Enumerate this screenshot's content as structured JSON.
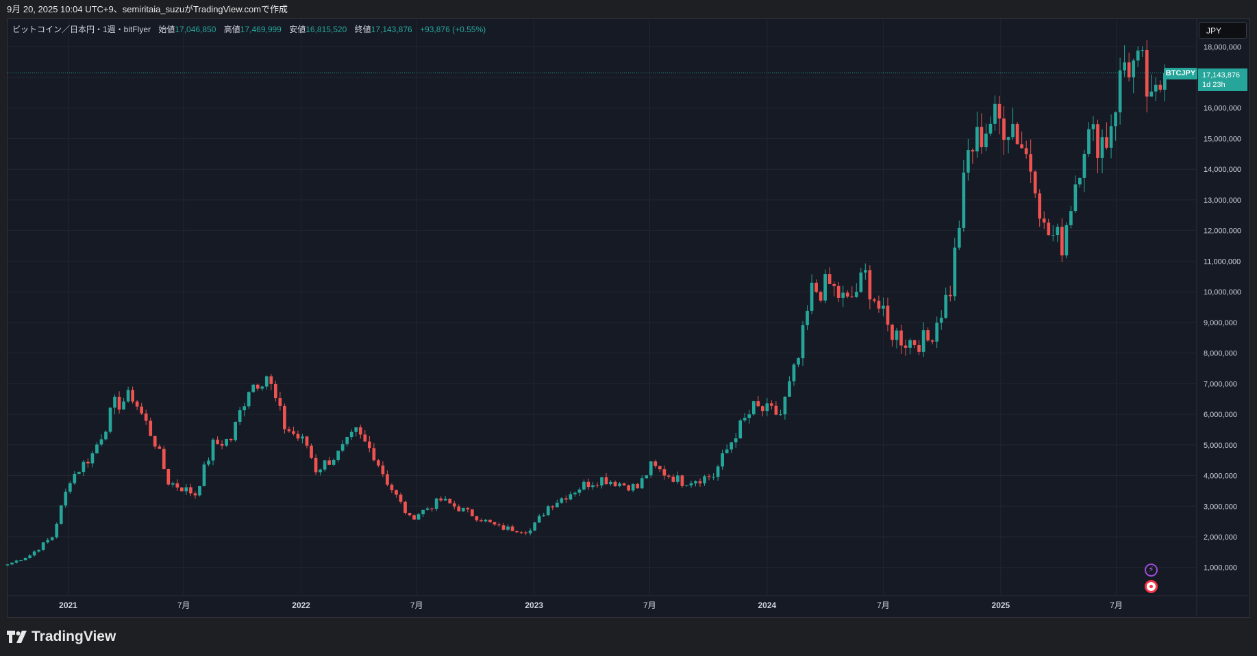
{
  "header": {
    "caption": "9月 20, 2025 10:04 UTC+9、semiritaia_suzuがTradingView.comで作成"
  },
  "legend": {
    "symbol": "ビットコイン／日本円・1週・bitFlyer",
    "open_label": "始値",
    "open": "17,046,850",
    "high_label": "高値",
    "high": "17,469,999",
    "low_label": "安値",
    "low": "16,815,520",
    "close_label": "終値",
    "close": "17,143,876",
    "change": "+93,876 (+0.55%)"
  },
  "currency_button": "JPY",
  "last_price": {
    "symbol": "BTCJPY",
    "price": "17,143,876",
    "countdown": "1d 23h"
  },
  "footer": {
    "brand": "TradingView"
  },
  "colors": {
    "up": "#26a69a",
    "down": "#ef5350",
    "background": "#161a25",
    "grid": "#22262f",
    "axis_text": "#d1d4dc"
  },
  "icons": [
    "flash-icon",
    "record-icon",
    "tradingview-logo-icon"
  ],
  "chart_data": {
    "type": "candlestick",
    "title": "ビットコイン／日本円・1週・bitFlyer",
    "interval": "1週",
    "currency": "JPY",
    "xlabel": "",
    "ylabel": "",
    "ylim": [
      100000,
      18900000
    ],
    "y_ticks": [
      1000000,
      2000000,
      3000000,
      4000000,
      5000000,
      6000000,
      7000000,
      8000000,
      9000000,
      10000000,
      11000000,
      12000000,
      13000000,
      14000000,
      15000000,
      16000000,
      17000000,
      18000000
    ],
    "y_tick_labels": [
      "1,000,000",
      "2,000,000",
      "3,000,000",
      "4,000,000",
      "5,000,000",
      "6,000,000",
      "7,000,000",
      "8,000,000",
      "9,000,000",
      "10,000,000",
      "11,000,000",
      "12,000,000",
      "13,000,000",
      "14,000,000",
      "15,000,000",
      "16,000,000",
      "17,000,000",
      "18,000,000"
    ],
    "x_range": [
      "2020-09-28",
      "2025-11-03"
    ],
    "x_ticks": [
      {
        "date": "2021-01-01",
        "label": "2021",
        "bold": true
      },
      {
        "date": "2021-07-01",
        "label": "7月",
        "bold": false
      },
      {
        "date": "2022-01-01",
        "label": "2022",
        "bold": true
      },
      {
        "date": "2022-07-01",
        "label": "7月",
        "bold": false
      },
      {
        "date": "2023-01-01",
        "label": "2023",
        "bold": true
      },
      {
        "date": "2023-07-01",
        "label": "7月",
        "bold": false
      },
      {
        "date": "2024-01-01",
        "label": "2024",
        "bold": true
      },
      {
        "date": "2024-07-01",
        "label": "7月",
        "bold": false
      },
      {
        "date": "2025-01-01",
        "label": "2025",
        "bold": true
      },
      {
        "date": "2025-07-01",
        "label": "7月",
        "bold": false
      }
    ],
    "last_close": 17143876,
    "grid": true,
    "series": [
      {
        "name": "BTCJPY",
        "anchors": [
          [
            "2020-09-28",
            1100000
          ],
          [
            "2020-11-02",
            1400000
          ],
          [
            "2020-12-07",
            2000000
          ],
          [
            "2021-01-04",
            3900000
          ],
          [
            "2021-02-08",
            4700000
          ],
          [
            "2021-03-15",
            6300000
          ],
          [
            "2021-04-12",
            6600000
          ],
          [
            "2021-05-17",
            5100000
          ],
          [
            "2021-06-07",
            3800000
          ],
          [
            "2021-07-19",
            3400000
          ],
          [
            "2021-08-16",
            5000000
          ],
          [
            "2021-09-13",
            5200000
          ],
          [
            "2021-10-11",
            6900000
          ],
          [
            "2021-11-08",
            7300000
          ],
          [
            "2021-12-06",
            5600000
          ],
          [
            "2022-01-10",
            5000000
          ],
          [
            "2022-01-24",
            4200000
          ],
          [
            "2022-02-28",
            4700000
          ],
          [
            "2022-03-28",
            5400000
          ],
          [
            "2022-04-25",
            4700000
          ],
          [
            "2022-05-16",
            3800000
          ],
          [
            "2022-06-20",
            2600000
          ],
          [
            "2022-08-08",
            3200000
          ],
          [
            "2022-09-19",
            2800000
          ],
          [
            "2022-11-07",
            2300000
          ],
          [
            "2022-12-26",
            2200000
          ],
          [
            "2023-01-23",
            3000000
          ],
          [
            "2023-03-20",
            3700000
          ],
          [
            "2023-04-17",
            3900000
          ],
          [
            "2023-06-12",
            3600000
          ],
          [
            "2023-07-03",
            4300000
          ],
          [
            "2023-08-21",
            3800000
          ],
          [
            "2023-10-09",
            4000000
          ],
          [
            "2023-11-13",
            5400000
          ],
          [
            "2023-12-11",
            6200000
          ],
          [
            "2024-01-22",
            6000000
          ],
          [
            "2024-02-19",
            7800000
          ],
          [
            "2024-03-11",
            10000000
          ],
          [
            "2024-04-08",
            10200000
          ],
          [
            "2024-05-06",
            9600000
          ],
          [
            "2024-06-03",
            10500000
          ],
          [
            "2024-07-08",
            8800000
          ],
          [
            "2024-08-05",
            8400000
          ],
          [
            "2024-09-09",
            8400000
          ],
          [
            "2024-10-14",
            10100000
          ],
          [
            "2024-11-11",
            14500000
          ],
          [
            "2024-12-16",
            15600000
          ],
          [
            "2025-01-20",
            15500000
          ],
          [
            "2025-02-24",
            13800000
          ],
          [
            "2025-03-10",
            12000000
          ],
          [
            "2025-04-07",
            11600000
          ],
          [
            "2025-05-12",
            15000000
          ],
          [
            "2025-06-16",
            15000000
          ],
          [
            "2025-07-14",
            17500000
          ],
          [
            "2025-08-11",
            17200000
          ],
          [
            "2025-08-25",
            15900000
          ],
          [
            "2025-09-15",
            17143876
          ]
        ]
      }
    ]
  }
}
